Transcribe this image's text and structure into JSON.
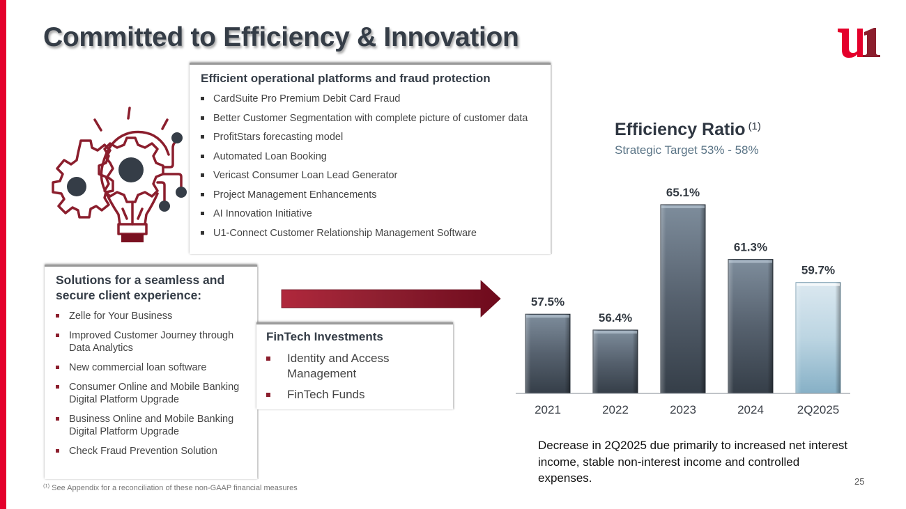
{
  "slide": {
    "title": "Committed to Efficiency & Innovation",
    "logo": "u1",
    "page_number": "25",
    "accent_colors": {
      "brand_red": "#e4002b",
      "dark_red": "#8b1e2d",
      "dark_slate": "#353d47",
      "bar_dark": "#4a5562",
      "bar_highlight": "#a9c9d9"
    }
  },
  "operations_card": {
    "title": "Efficient operational platforms and fraud protection",
    "items": [
      "CardSuite Pro Premium Debit Card Fraud",
      "Better Customer Segmentation with complete picture of customer data",
      "ProfitStars forecasting model",
      "Automated Loan Booking",
      "Vericast Consumer Loan Lead Generator",
      "Project Management Enhancements",
      "AI Innovation Initiative",
      "U1-Connect Customer Relationship Management Software"
    ]
  },
  "solutions_card": {
    "title": "Solutions for a seamless and secure client experience:",
    "items": [
      "Zelle for Your Business",
      "Improved Customer Journey through Data Analytics",
      "New commercial loan software",
      "Consumer Online and Mobile Banking Digital Platform Upgrade",
      "Business Online and Mobile Banking Digital Platform Upgrade",
      "Check Fraud Prevention Solution"
    ]
  },
  "fintech_card": {
    "title": "FinTech Investments",
    "items": [
      "Identity and Access Management",
      "FinTech Funds"
    ]
  },
  "icons": {
    "illustration": "lightbulb-gears-icon",
    "arrow": "arrow-right-icon"
  },
  "chart_data": {
    "type": "bar",
    "title": "Efficiency Ratio",
    "title_footnote_marker": "(1)",
    "subtitle": "Strategic Target 53% - 58%",
    "categories": [
      "2021",
      "2022",
      "2023",
      "2024",
      "2Q2025"
    ],
    "values": [
      57.5,
      56.4,
      65.1,
      61.3,
      59.7
    ],
    "data_labels": [
      "57.5%",
      "56.4%",
      "65.1%",
      "61.3%",
      "59.7%"
    ],
    "highlighted_category": "2Q2025",
    "xlabel": "",
    "ylabel": "",
    "ylim": [
      52,
      66.5
    ],
    "grid": false,
    "legend": "none",
    "y_axis_visible": false
  },
  "commentary": "Decrease in 2Q2025 due primarily to increased net interest income, stable non-interest income and controlled expenses.",
  "footnote": {
    "marker": "(1)",
    "text": "See Appendix for a reconciliation of these non-GAAP financial measures"
  }
}
